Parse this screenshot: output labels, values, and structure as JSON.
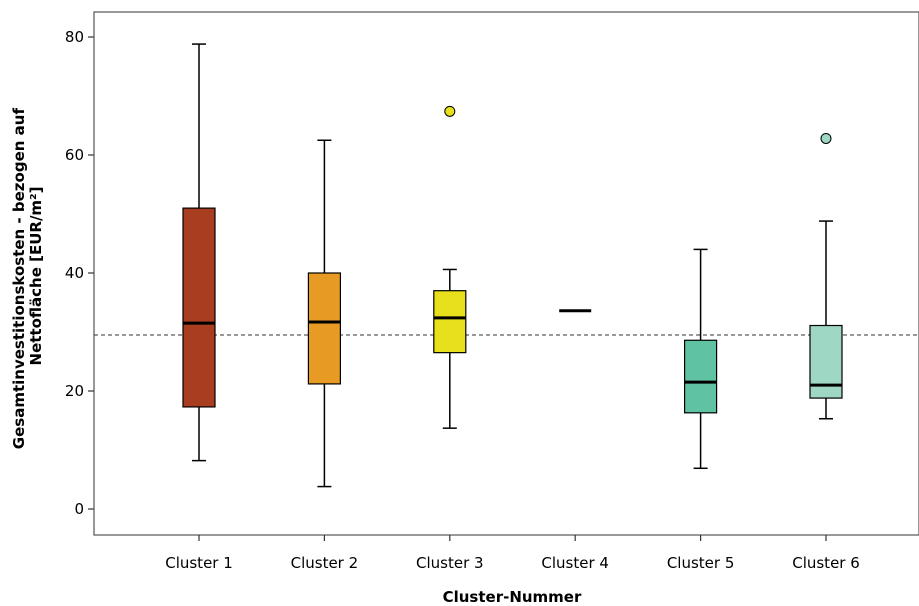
{
  "chart_data": {
    "type": "boxplot",
    "xlabel": "Cluster-Nummer",
    "ylabel_lines": [
      "Gesamtinvestitionskosten - bezogen auf",
      "Nettofläche [EUR/m²]"
    ],
    "ylim": [
      -5,
      85
    ],
    "yticks": [
      0,
      20,
      40,
      60,
      80
    ],
    "reference_line": 29.5,
    "categories": [
      "Cluster 1",
      "Cluster 2",
      "Cluster 3",
      "Cluster 4",
      "Cluster 5",
      "Cluster 6"
    ],
    "boxes": [
      {
        "label": "Cluster 1",
        "whisker_low": 8.2,
        "q1": 17.3,
        "median": 31.5,
        "q3": 51.0,
        "whisker_high": 78.8,
        "outliers": [],
        "color": "#a93d1f"
      },
      {
        "label": "Cluster 2",
        "whisker_low": 3.8,
        "q1": 21.2,
        "median": 31.7,
        "q3": 40.0,
        "whisker_high": 62.5,
        "outliers": [],
        "color": "#e89b24"
      },
      {
        "label": "Cluster 3",
        "whisker_low": 13.7,
        "q1": 26.5,
        "median": 32.4,
        "q3": 37.0,
        "whisker_high": 40.6,
        "outliers": [
          67.4
        ],
        "color": "#e8e01c"
      },
      {
        "label": "Cluster 4",
        "whisker_low": 33.6,
        "q1": 33.6,
        "median": 33.6,
        "q3": 33.6,
        "whisker_high": 33.6,
        "outliers": [],
        "color": "#000000"
      },
      {
        "label": "Cluster 5",
        "whisker_low": 6.9,
        "q1": 16.3,
        "median": 21.5,
        "q3": 28.6,
        "whisker_high": 44.0,
        "outliers": [],
        "color": "#5fc2a3"
      },
      {
        "label": "Cluster 6",
        "whisker_low": 15.3,
        "q1": 18.8,
        "median": 21.0,
        "q3": 31.1,
        "whisker_high": 48.8,
        "outliers": [
          62.8
        ],
        "color": "#9ed8c4"
      }
    ]
  }
}
